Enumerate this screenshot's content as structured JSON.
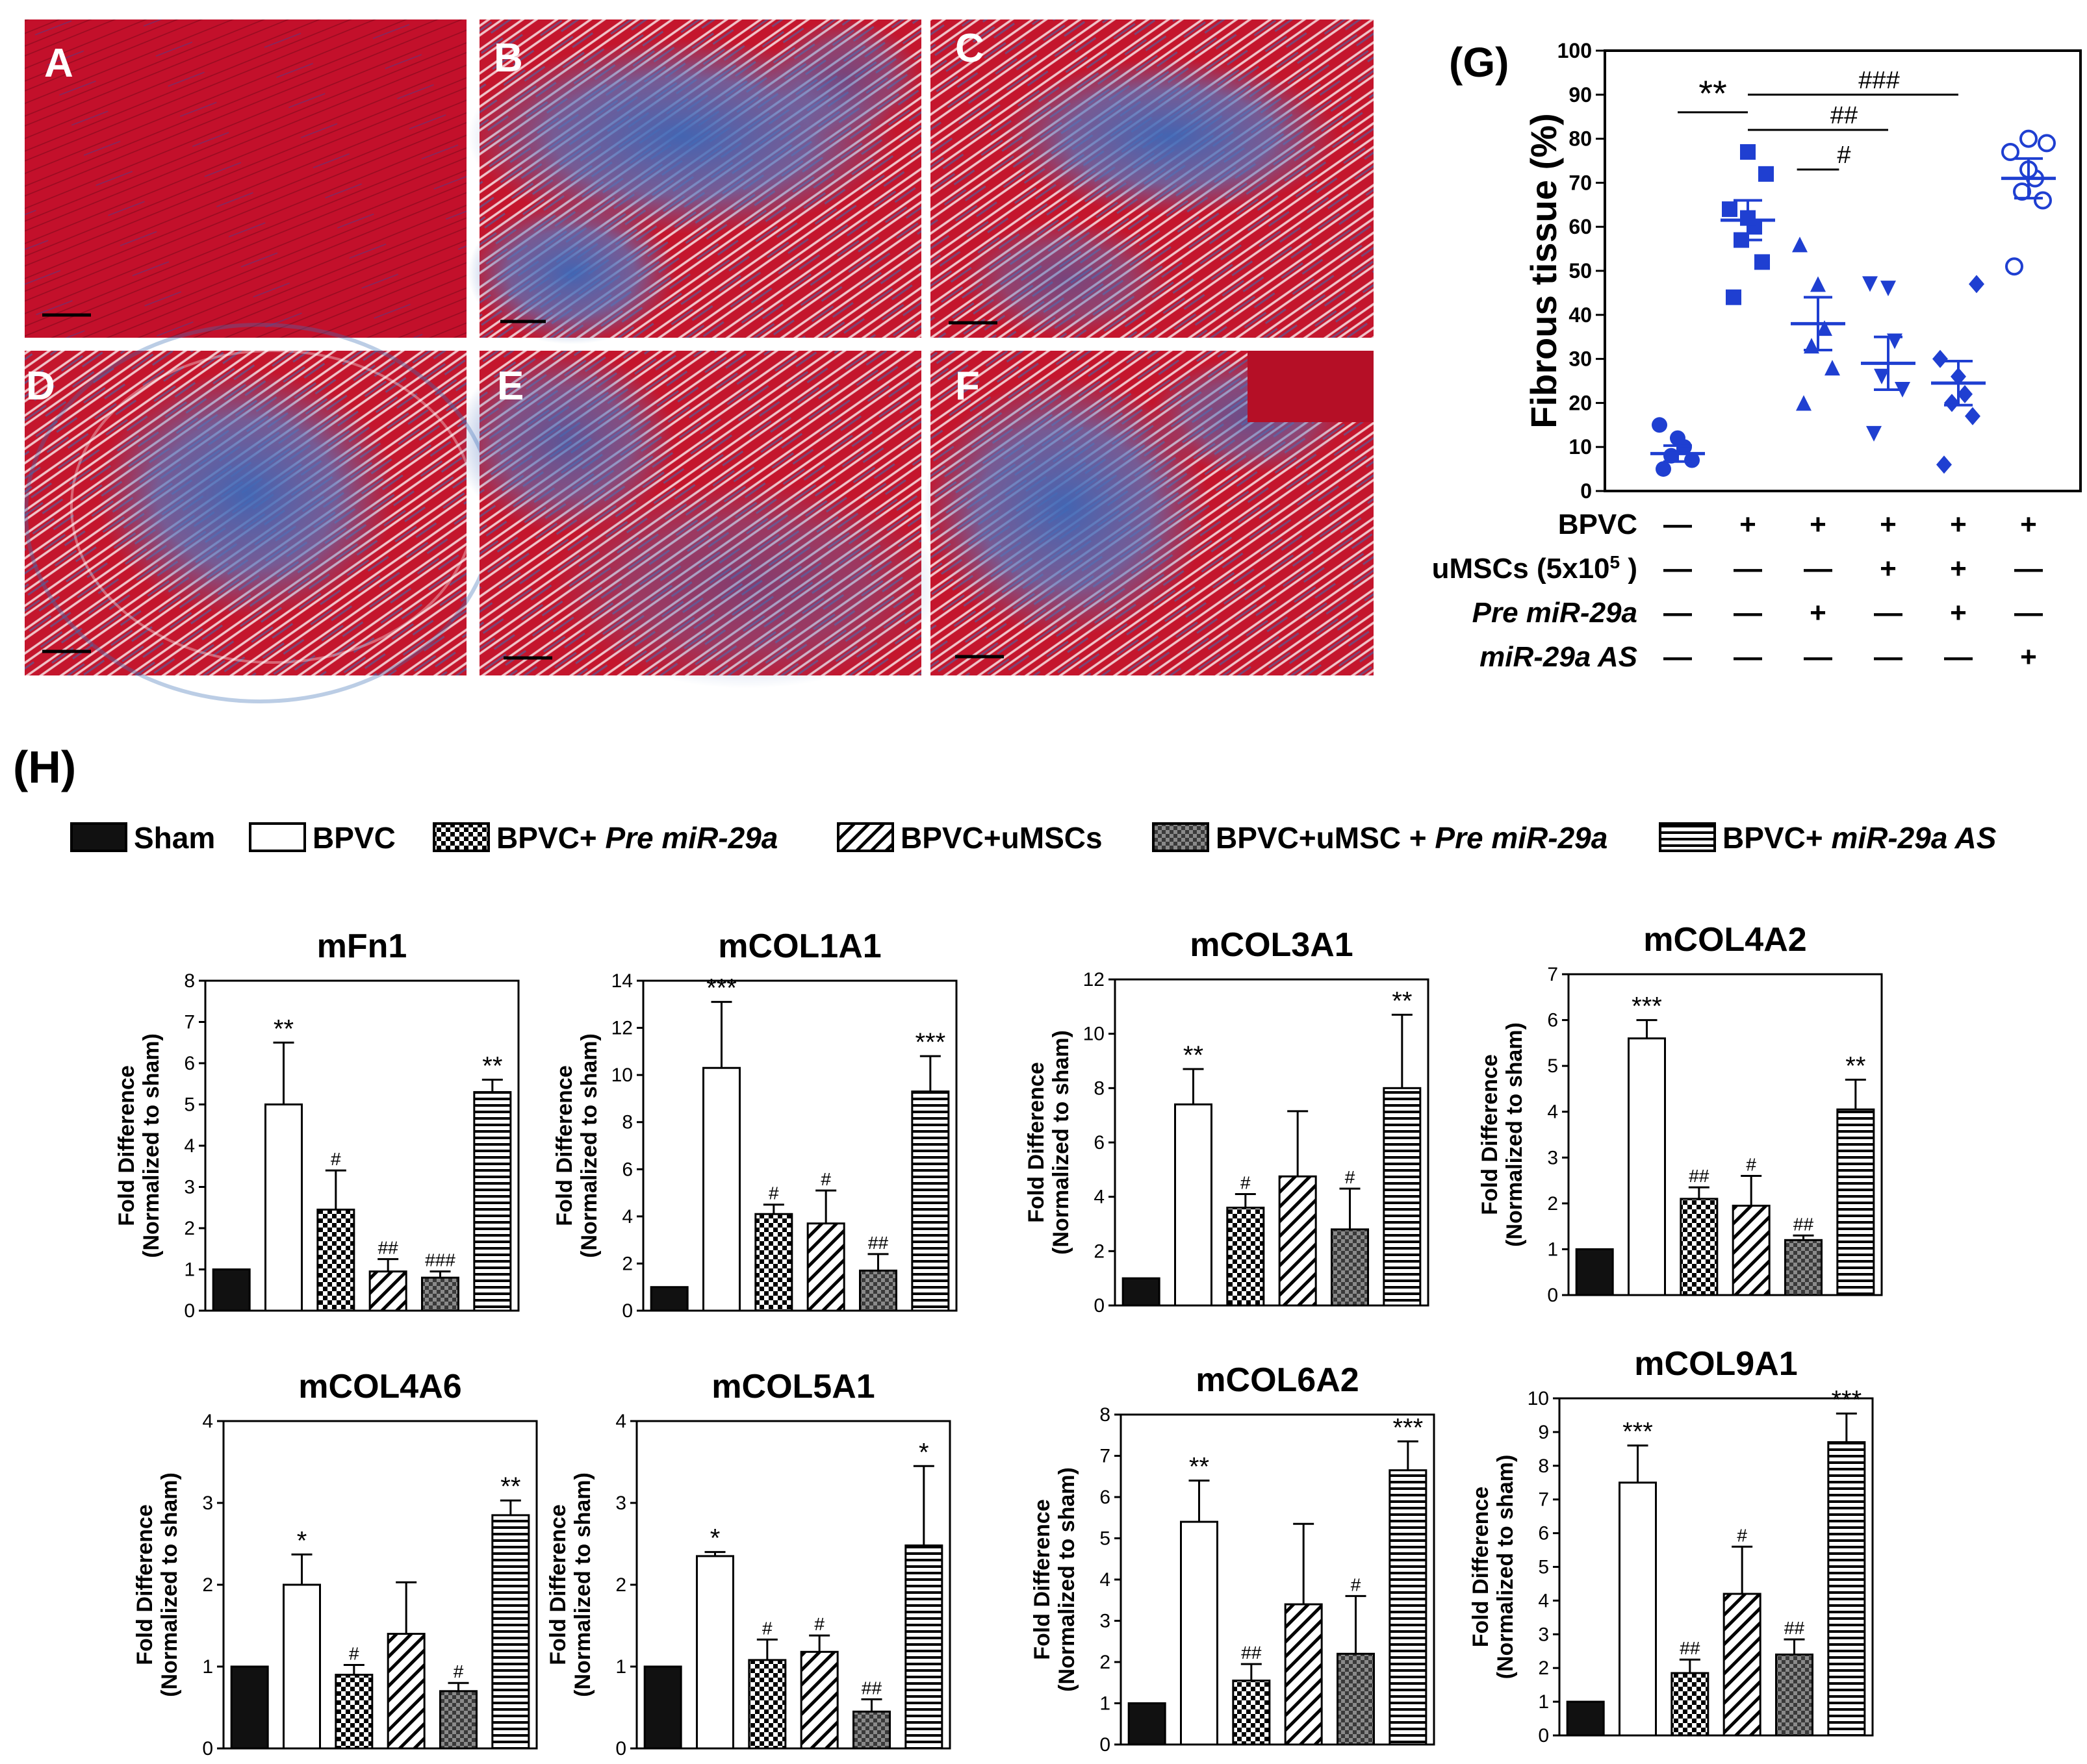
{
  "panels": {
    "A": {
      "label": "A"
    },
    "B": {
      "label": "B"
    },
    "C": {
      "label": "C"
    },
    "D": {
      "label": "D"
    },
    "E": {
      "label": "E"
    },
    "F": {
      "label": "F"
    }
  },
  "section_h_label": "(H)",
  "legend": [
    {
      "key": "sham",
      "pre": "Sham",
      "italic": ""
    },
    {
      "key": "bpvc",
      "pre": "BPVC",
      "italic": ""
    },
    {
      "key": "bpvc_pre",
      "pre": "BPVC+ ",
      "italic": "Pre miR-29a"
    },
    {
      "key": "bpvc_umsc",
      "pre": "BPVC+uMSCs",
      "italic": ""
    },
    {
      "key": "bpvc_umsc_pre",
      "pre": "BPVC+uMSC + ",
      "italic": "Pre miR-29a"
    },
    {
      "key": "bpvc_as",
      "pre": "BPVC+ ",
      "italic": "miR-29a AS"
    }
  ],
  "colors": {
    "stain_red": "#c0132a",
    "stain_blue": "#3c6fb5",
    "dot_blue": "#1f3fd1",
    "bar_black": "#111111",
    "axis": "#000000"
  },
  "chart_data": [
    {
      "id": "G",
      "type": "scatter",
      "panel_label": "(G)",
      "ylabel": "Fibrous tissue (%)",
      "ylim": [
        0,
        100
      ],
      "yticks": [
        0,
        10,
        20,
        30,
        40,
        50,
        60,
        70,
        80,
        90,
        100
      ],
      "groups": [
        {
          "marker": "circle",
          "filled": true,
          "points": [
            5,
            7,
            8,
            10,
            12,
            15
          ],
          "mean": 8.5,
          "sem": 1.8
        },
        {
          "marker": "square",
          "filled": true,
          "points": [
            44,
            52,
            57,
            60,
            62,
            64,
            72,
            77
          ],
          "mean": 61.5,
          "sem": 4.5
        },
        {
          "marker": "triangle-up",
          "filled": true,
          "points": [
            20,
            28,
            33,
            37,
            47,
            56
          ],
          "mean": 38,
          "sem": 6
        },
        {
          "marker": "triangle-down",
          "filled": true,
          "points": [
            13,
            23,
            26,
            34,
            46,
            47
          ],
          "mean": 29,
          "sem": 6
        },
        {
          "marker": "diamond",
          "filled": true,
          "points": [
            6,
            17,
            20,
            22,
            26,
            30,
            47
          ],
          "mean": 24.5,
          "sem": 5
        },
        {
          "marker": "circle",
          "filled": false,
          "points": [
            51,
            66,
            68,
            71,
            73,
            77,
            79,
            80
          ],
          "mean": 71,
          "sem": 4.5
        }
      ],
      "significance": [
        {
          "label": "**",
          "from": 0,
          "to": 1,
          "y": 86
        },
        {
          "label": "#",
          "from": 1.7,
          "to": 2.3,
          "y": 73
        },
        {
          "label": "##",
          "from": 1,
          "to": 3,
          "y": 82
        },
        {
          "label": "###",
          "from": 1,
          "to": 4,
          "y": 90
        }
      ],
      "factor_table": [
        {
          "name": "BPVC",
          "sup": "",
          "suffix": "",
          "italic": false,
          "values": [
            "—",
            "+",
            "+",
            "+",
            "+",
            "+"
          ]
        },
        {
          "name": "uMSCs (5x10",
          "sup": "5",
          "suffix": " )",
          "italic": false,
          "values": [
            "—",
            "—",
            "—",
            "+",
            "+",
            "—"
          ]
        },
        {
          "name": "Pre miR-29a",
          "sup": "",
          "suffix": "",
          "italic": true,
          "values": [
            "—",
            "—",
            "+",
            "—",
            "+",
            "—"
          ]
        },
        {
          "name": "miR-29a AS",
          "sup": "",
          "suffix": "",
          "italic": true,
          "values": [
            "—",
            "—",
            "—",
            "—",
            "—",
            "+"
          ]
        }
      ]
    },
    {
      "id": "mFn1",
      "type": "bar",
      "title": "mFn1",
      "ylabel": [
        "Fold Difference",
        "(Normalized to sham)"
      ],
      "ylim": [
        0,
        8
      ],
      "yticks": [
        0,
        1,
        2,
        3,
        4,
        5,
        6,
        7,
        8
      ],
      "values": [
        1,
        5,
        2.45,
        0.95,
        0.8,
        5.3
      ],
      "errors": [
        0,
        1.5,
        0.95,
        0.3,
        0.15,
        0.3
      ],
      "annotations": [
        "",
        "**",
        "#",
        "##",
        "###",
        "**"
      ]
    },
    {
      "id": "mCOL1A1",
      "type": "bar",
      "title": "mCOL1A1",
      "ylabel": [
        "Fold Difference",
        "(Normalized to sham)"
      ],
      "ylim": [
        0,
        14
      ],
      "yticks": [
        0,
        2,
        4,
        6,
        8,
        10,
        12,
        14
      ],
      "values": [
        1,
        10.3,
        4.1,
        3.7,
        1.7,
        9.3
      ],
      "errors": [
        0,
        2.8,
        0.4,
        1.4,
        0.7,
        1.5
      ],
      "annotations": [
        "",
        "***",
        "#",
        "#",
        "##",
        "***"
      ]
    },
    {
      "id": "mCOL3A1",
      "type": "bar",
      "title": "mCOL3A1",
      "ylabel": [
        "Fold Difference",
        "(Normalized to sham)"
      ],
      "ylim": [
        0,
        12
      ],
      "yticks": [
        0,
        2,
        4,
        6,
        8,
        10,
        12
      ],
      "values": [
        1,
        7.4,
        3.6,
        4.75,
        2.8,
        8
      ],
      "errors": [
        0,
        1.3,
        0.5,
        2.4,
        1.5,
        2.7
      ],
      "annotations": [
        "",
        "**",
        "#",
        "",
        "#",
        "**"
      ]
    },
    {
      "id": "mCOL4A2",
      "type": "bar",
      "title": "mCOL4A2",
      "ylabel": [
        "Fold Difference",
        "(Normalized to sham)"
      ],
      "ylim": [
        0,
        7
      ],
      "yticks": [
        0,
        1,
        2,
        3,
        4,
        5,
        6,
        7
      ],
      "values": [
        1,
        5.6,
        2.1,
        1.95,
        1.2,
        4.05
      ],
      "errors": [
        0,
        0.4,
        0.25,
        0.65,
        0.1,
        0.65
      ],
      "annotations": [
        "",
        "***",
        "##",
        "#",
        "##",
        "**"
      ]
    },
    {
      "id": "mCOL4A6",
      "type": "bar",
      "title": "mCOL4A6",
      "ylabel": [
        "Fold Difference",
        "(Normalized to sham)"
      ],
      "ylim": [
        0,
        4
      ],
      "yticks": [
        0,
        1,
        2,
        3,
        4
      ],
      "values": [
        1,
        2,
        0.9,
        1.4,
        0.7,
        2.85
      ],
      "errors": [
        0,
        0.37,
        0.12,
        0.63,
        0.1,
        0.18
      ],
      "annotations": [
        "",
        "*",
        "#",
        "",
        "#",
        "**"
      ]
    },
    {
      "id": "mCOL5A1",
      "type": "bar",
      "title": "mCOL5A1",
      "ylabel": [
        "Fold Difference",
        "(Normalized to sham)"
      ],
      "ylim": [
        0,
        4
      ],
      "yticks": [
        0,
        1,
        2,
        3,
        4
      ],
      "values": [
        1,
        2.35,
        1.08,
        1.18,
        0.45,
        2.48
      ],
      "errors": [
        0,
        0.05,
        0.25,
        0.2,
        0.15,
        0.97
      ],
      "annotations": [
        "",
        "*",
        "#",
        "#",
        "##",
        "*"
      ]
    },
    {
      "id": "mCOL6A2",
      "type": "bar",
      "title": "mCOL6A2",
      "ylabel": [
        "Fold Difference",
        "(Normalized to sham)"
      ],
      "ylim": [
        0,
        8
      ],
      "yticks": [
        0,
        1,
        2,
        3,
        4,
        5,
        6,
        7,
        8
      ],
      "values": [
        1,
        5.4,
        1.55,
        3.4,
        2.2,
        6.65
      ],
      "errors": [
        0,
        1.0,
        0.4,
        1.95,
        1.4,
        0.7
      ],
      "annotations": [
        "",
        "**",
        "##",
        "",
        "#",
        "***"
      ]
    },
    {
      "id": "mCOL9A1",
      "type": "bar",
      "title": "mCOL9A1",
      "ylabel": [
        "Fold Difference",
        "(Normalized to sham)"
      ],
      "ylim": [
        0,
        10
      ],
      "yticks": [
        0,
        1,
        2,
        3,
        4,
        5,
        6,
        7,
        8,
        9,
        10
      ],
      "values": [
        1,
        7.5,
        1.85,
        4.2,
        2.4,
        8.7
      ],
      "errors": [
        0,
        1.1,
        0.4,
        1.4,
        0.45,
        0.85
      ],
      "annotations": [
        "",
        "***",
        "##",
        "#",
        "##",
        "***"
      ]
    }
  ]
}
